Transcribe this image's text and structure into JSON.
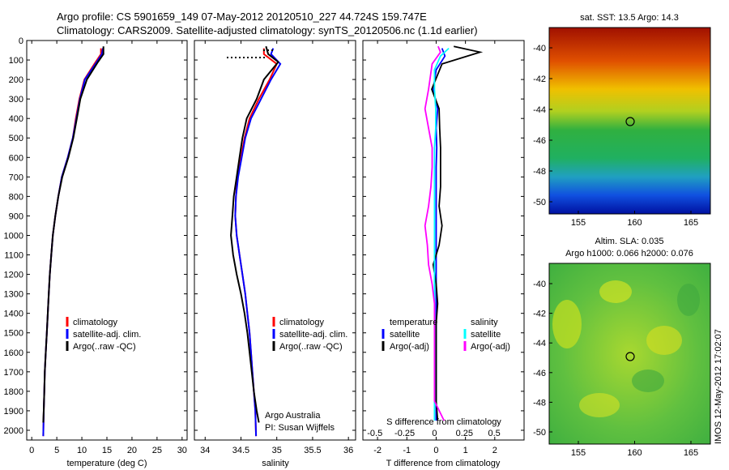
{
  "header": {
    "line1": "Argo profile: CS 5901659_149 07-May-2012 20120510_227 44.724S 159.747E",
    "line2": "Climatology: CARS2009. Satellite-adjusted climatology: synTS_20120506.nc (1.1d earlier)"
  },
  "panels": {
    "temperature": {
      "xlabel": "temperature (deg C)",
      "xticks": [
        "0",
        "5",
        "10",
        "15",
        "20",
        "25",
        "30"
      ],
      "legend": [
        "climatology",
        "satellite-adj. clim.",
        "Argo(..raw -QC)"
      ]
    },
    "salinity": {
      "xlabel": "salinity",
      "xticks": [
        "34",
        "34.5",
        "35",
        "35.5",
        "36"
      ],
      "legend": [
        "climatology",
        "satellite-adj. clim.",
        "Argo(..raw -QC)"
      ],
      "annotation1": "Argo Australia",
      "annotation2": "PI: Susan Wijffels"
    },
    "difference": {
      "xlabel": "T difference from climatology",
      "toplabel": "S difference from climatology",
      "xticks_t": [
        "-2",
        "-1",
        "0",
        "1",
        "2"
      ],
      "xticks_s": [
        "-0.5",
        "-0.25",
        "0",
        "0.25",
        "0.5"
      ],
      "legend_t_title": "temperature",
      "legend_t": [
        "satellite",
        "Argo(-adj)"
      ],
      "legend_s_title": "salinity",
      "legend_s": [
        "satellite",
        "Argo(-adj)"
      ]
    },
    "map_sst": {
      "title": "sat. SST: 13.5  Argo: 14.3",
      "yticks": [
        "-40",
        "-42",
        "-44",
        "-46",
        "-48",
        "-50"
      ],
      "xticks": [
        "155",
        "160",
        "165"
      ]
    },
    "map_sla": {
      "title1": "Altim. SLA: 0.035",
      "title2": "Argo h1000: 0.066 h2000: 0.076",
      "yticks": [
        "-40",
        "-42",
        "-44",
        "-46",
        "-48",
        "-50"
      ],
      "xticks": [
        "155",
        "160",
        "165"
      ]
    }
  },
  "yticks_depth": [
    "0",
    "100",
    "200",
    "300",
    "400",
    "500",
    "600",
    "700",
    "800",
    "900",
    "1000",
    "1100",
    "1200",
    "1300",
    "1400",
    "1500",
    "1600",
    "1700",
    "1800",
    "1900",
    "2000"
  ],
  "watermark": "IMOS 12-May-2012 17:02:07",
  "colors": {
    "climatology": "#ff0000",
    "satellite": "#0000ff",
    "argo": "#000000",
    "sat_s": "#00ffff",
    "argo_s": "#ff00ff"
  },
  "chart_data": [
    {
      "type": "line",
      "xlabel": "temperature (deg C)",
      "xlim": [
        -1,
        31
      ],
      "ylim": [
        2050,
        0
      ],
      "series": [
        {
          "name": "climatology",
          "color": "#ff0000",
          "x": [
            13.8,
            13.8,
            12.5,
            10.5,
            9.5,
            8.8,
            8.2,
            7.2,
            6.0,
            5.3,
            4.7,
            4.2,
            3.9,
            3.6,
            3.4,
            3.2,
            3.0,
            2.8,
            2.6,
            2.5,
            2.4,
            2.3
          ],
          "y": [
            40,
            70,
            120,
            200,
            300,
            400,
            500,
            600,
            700,
            800,
            900,
            1000,
            1100,
            1200,
            1300,
            1400,
            1500,
            1600,
            1700,
            1800,
            1900,
            2030
          ]
        },
        {
          "name": "satellite-adj. clim.",
          "color": "#0000ff",
          "x": [
            14.2,
            14.0,
            12.7,
            10.6,
            9.6,
            8.9,
            8.2,
            7.2,
            6.0,
            5.3,
            4.7,
            4.2,
            3.9,
            3.6,
            3.4,
            3.2,
            3.0,
            2.8,
            2.6,
            2.5,
            2.4,
            2.3
          ],
          "y": [
            40,
            70,
            120,
            200,
            300,
            400,
            500,
            600,
            700,
            800,
            900,
            1000,
            1100,
            1200,
            1300,
            1400,
            1500,
            1600,
            1700,
            1800,
            1900,
            2030
          ]
        },
        {
          "name": "Argo(..raw -QC)",
          "color": "#000000",
          "x": [
            14.3,
            14.3,
            13.2,
            11.0,
            9.7,
            9.0,
            8.3,
            7.3,
            6.1,
            5.3,
            4.7,
            4.2,
            3.9,
            3.6,
            3.4,
            3.2,
            3.0,
            2.8,
            2.6,
            2.5,
            2.4,
            2.3
          ],
          "y": [
            30,
            70,
            110,
            200,
            300,
            400,
            500,
            600,
            700,
            800,
            900,
            1000,
            1100,
            1200,
            1300,
            1400,
            1500,
            1600,
            1700,
            1800,
            1900,
            1960
          ]
        }
      ]
    },
    {
      "type": "line",
      "xlabel": "salinity",
      "xlim": [
        33.85,
        36.1
      ],
      "ylim": [
        2050,
        0
      ],
      "series": [
        {
          "name": "climatology",
          "color": "#ff0000",
          "x": [
            34.82,
            34.82,
            35.0,
            34.9,
            34.75,
            34.62,
            34.55,
            34.5,
            34.45,
            34.43,
            34.42,
            34.44,
            34.48,
            34.52,
            34.56,
            34.59,
            34.62,
            34.64,
            34.66,
            34.68,
            34.7,
            34.71
          ],
          "y": [
            40,
            70,
            120,
            200,
            300,
            400,
            500,
            600,
            700,
            800,
            900,
            1000,
            1100,
            1200,
            1300,
            1400,
            1500,
            1600,
            1700,
            1800,
            1900,
            2030
          ]
        },
        {
          "name": "satellite-adj. clim.",
          "color": "#0000ff",
          "x": [
            34.95,
            34.92,
            35.05,
            34.92,
            34.78,
            34.64,
            34.56,
            34.51,
            34.46,
            34.43,
            34.42,
            34.44,
            34.48,
            34.52,
            34.56,
            34.59,
            34.62,
            34.64,
            34.66,
            34.68,
            34.7,
            34.71
          ],
          "y": [
            40,
            70,
            120,
            200,
            300,
            400,
            500,
            600,
            700,
            800,
            900,
            1000,
            1100,
            1200,
            1300,
            1400,
            1500,
            1600,
            1700,
            1800,
            1900,
            2030
          ]
        },
        {
          "name": "Argo(..raw -QC)",
          "color": "#000000",
          "x": [
            34.85,
            34.88,
            35.02,
            34.82,
            34.72,
            34.58,
            34.52,
            34.48,
            34.44,
            34.4,
            34.38,
            34.36,
            34.39,
            34.44,
            34.5,
            34.55,
            34.59,
            34.62,
            34.65,
            34.68,
            34.72,
            34.75
          ],
          "y": [
            30,
            70,
            110,
            200,
            300,
            400,
            500,
            600,
            700,
            800,
            900,
            1000,
            1100,
            1200,
            1300,
            1400,
            1500,
            1600,
            1700,
            1800,
            1900,
            1960
          ]
        }
      ]
    },
    {
      "type": "line",
      "xlabel": "T difference from climatology",
      "xlim": [
        -2.5,
        3
      ],
      "ylim": [
        2050,
        0
      ],
      "series": [
        {
          "name": "satellite",
          "color": "#0000ff",
          "x": [
            0.2,
            0.3,
            0.0,
            -0.1,
            0.05,
            0.0,
            0.02,
            0.0,
            0.0,
            0.0,
            0.0,
            0.0,
            0.0,
            0.0,
            0.0,
            0.0,
            0.0,
            0.0,
            0.0,
            0.0,
            0.0
          ],
          "y": [
            40,
            80,
            150,
            250,
            350,
            450,
            550,
            650,
            750,
            850,
            950,
            1050,
            1150,
            1250,
            1350,
            1450,
            1550,
            1650,
            1750,
            1850,
            1950
          ]
        },
        {
          "name": "Argo(-adj)",
          "color": "#000000",
          "x": [
            0.6,
            1.5,
            0.2,
            -0.15,
            0.1,
            0.12,
            0.15,
            0.15,
            0.15,
            0.1,
            0.2,
            0.1,
            -0.1,
            0.0,
            0.05,
            0.0,
            0.0,
            0.0,
            0.0,
            0.0,
            0.05
          ],
          "y": [
            30,
            60,
            120,
            250,
            350,
            450,
            550,
            650,
            750,
            850,
            950,
            1050,
            1150,
            1250,
            1350,
            1450,
            1550,
            1650,
            1750,
            1850,
            1950
          ]
        }
      ]
    },
    {
      "type": "line",
      "xlabel": "S difference from climatology",
      "xlim": [
        -0.6,
        0.75
      ],
      "ylim": [
        2050,
        0
      ],
      "series": [
        {
          "name": "satellite",
          "color": "#00ffff",
          "x": [
            0.12,
            0.05,
            0.0,
            0.0,
            0.01,
            0.01,
            0.0,
            0.0,
            0.0,
            0.0,
            0.0,
            0.0,
            0.0,
            0.0,
            0.0,
            0.0,
            0.0,
            0.0,
            0.0,
            0.0,
            0.0
          ],
          "y": [
            40,
            80,
            150,
            250,
            350,
            450,
            550,
            650,
            750,
            850,
            950,
            1050,
            1150,
            1250,
            1350,
            1450,
            1550,
            1650,
            1750,
            1850,
            1950
          ]
        },
        {
          "name": "Argo(-adj)",
          "color": "#ff00ff",
          "x": [
            0.03,
            0.05,
            -0.02,
            -0.05,
            -0.08,
            -0.05,
            -0.02,
            -0.02,
            -0.03,
            -0.05,
            -0.08,
            -0.06,
            -0.05,
            -0.02,
            0.0,
            0.0,
            0.0,
            0.0,
            0.0,
            0.0,
            0.08
          ],
          "y": [
            30,
            60,
            120,
            250,
            350,
            450,
            550,
            650,
            750,
            850,
            950,
            1050,
            1150,
            1250,
            1350,
            1450,
            1550,
            1650,
            1750,
            1850,
            1950
          ]
        }
      ]
    }
  ]
}
